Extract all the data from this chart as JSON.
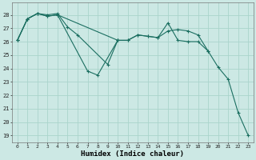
{
  "xlabel": "Humidex (Indice chaleur)",
  "background_color": "#cce8e4",
  "grid_color": "#aad4cc",
  "line_color": "#1a6e60",
  "xlim": [
    -0.5,
    23.5
  ],
  "ylim": [
    18.5,
    28.9
  ],
  "yticks": [
    19,
    20,
    21,
    22,
    23,
    24,
    25,
    26,
    27,
    28
  ],
  "xticks": [
    0,
    1,
    2,
    3,
    4,
    5,
    6,
    7,
    8,
    9,
    10,
    11,
    12,
    13,
    14,
    15,
    16,
    17,
    18,
    19,
    20,
    21,
    22,
    23
  ],
  "series": [
    {
      "x": [
        0,
        1,
        2,
        3,
        4,
        7,
        8,
        10,
        11,
        12,
        13,
        14,
        15,
        16,
        17,
        18,
        19,
        20,
        21,
        22,
        23
      ],
      "y": [
        26.1,
        27.7,
        28.1,
        27.9,
        28.0,
        23.8,
        23.5,
        26.1,
        26.1,
        26.5,
        26.4,
        26.3,
        27.4,
        26.1,
        26.0,
        26.0,
        25.3,
        24.1,
        23.2,
        20.7,
        19.0
      ]
    },
    {
      "x": [
        0,
        1,
        2,
        3,
        4,
        10,
        11,
        12,
        13,
        14,
        15,
        16,
        17,
        18,
        19
      ],
      "y": [
        26.1,
        27.7,
        28.1,
        27.9,
        28.0,
        26.1,
        26.1,
        26.5,
        26.4,
        26.3,
        26.8,
        26.9,
        26.8,
        26.5,
        25.3
      ]
    },
    {
      "x": [
        0,
        1,
        2,
        3,
        4,
        5,
        6,
        9,
        10
      ],
      "y": [
        26.1,
        27.7,
        28.1,
        28.0,
        28.1,
        27.1,
        26.5,
        24.3,
        26.1
      ]
    }
  ]
}
